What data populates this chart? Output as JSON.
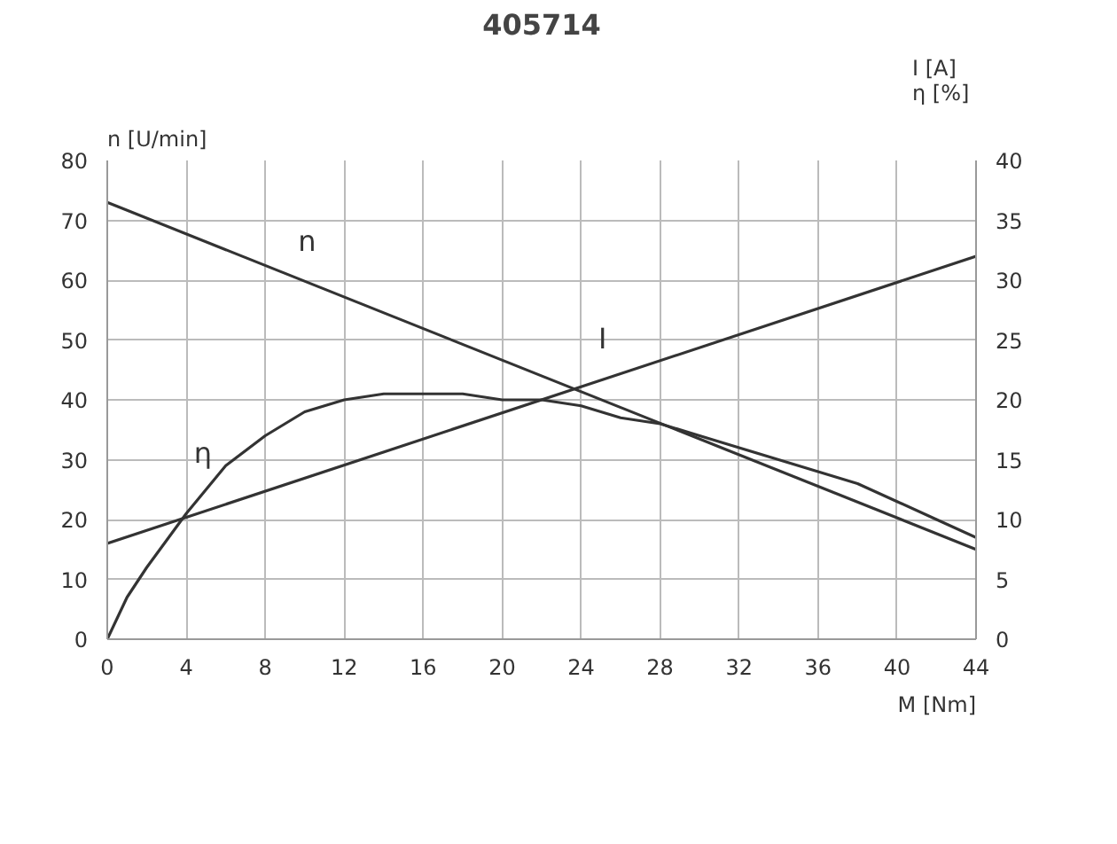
{
  "chart_data": {
    "type": "line",
    "title": "405714",
    "xlabel": "M [Nm]",
    "ylabel": "n [U/min]",
    "y2label": "I [A]\nη  [%]",
    "xlim": [
      0,
      44
    ],
    "xticks": [
      0,
      4,
      8,
      12,
      16,
      20,
      24,
      28,
      32,
      36,
      40,
      44
    ],
    "ylim": [
      0,
      80
    ],
    "yticks": [
      0,
      10,
      20,
      30,
      40,
      50,
      60,
      70,
      80
    ],
    "y2lim": [
      0,
      40
    ],
    "y2ticks": [
      0,
      5,
      10,
      15,
      20,
      25,
      30,
      35,
      40
    ],
    "grid": true,
    "marker": "none",
    "line_style": "solid",
    "series": [
      {
        "name": "n",
        "color": "#333333",
        "x": [
          0,
          44
        ],
        "values": [
          73,
          15
        ]
      },
      {
        "name": "I",
        "color": "#333333",
        "axis": "y2",
        "x": [
          0,
          44
        ],
        "values": [
          8,
          32
        ]
      },
      {
        "name": "η",
        "color": "#333333",
        "axis": "y2",
        "x": [
          0,
          1,
          2,
          4,
          6,
          8,
          10,
          12,
          14,
          16,
          18,
          20,
          22,
          24,
          26,
          28,
          30,
          32,
          34,
          36,
          38,
          40,
          42,
          44
        ],
        "values": [
          0,
          3.5,
          6,
          10.5,
          14.5,
          17,
          19,
          20,
          20.5,
          20.5,
          20.5,
          20,
          20,
          19.5,
          18.5,
          18,
          17,
          16,
          15,
          14,
          13,
          11.5,
          10,
          8.5
        ]
      }
    ]
  }
}
